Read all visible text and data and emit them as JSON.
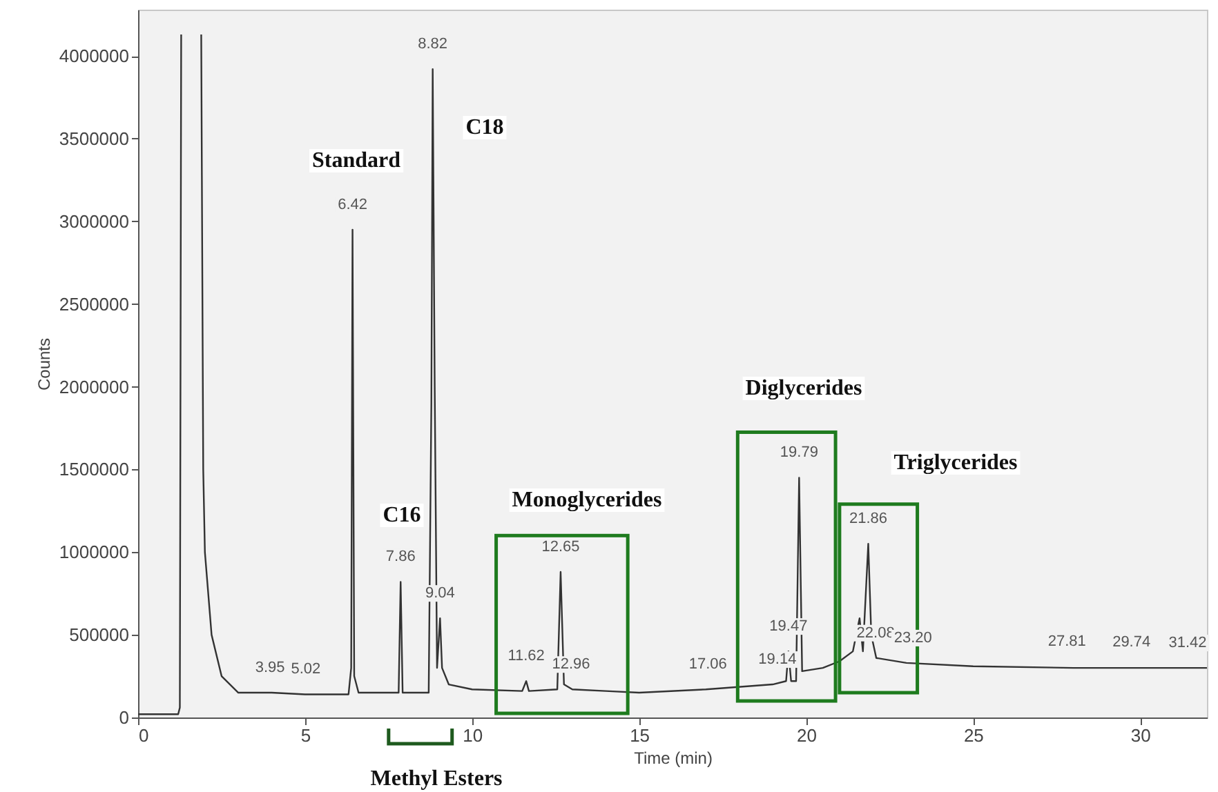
{
  "chart_data": {
    "type": "line",
    "xlabel": "Time (min)",
    "ylabel": "Counts",
    "xlim": [
      0,
      32
    ],
    "ylim": [
      0,
      4280000
    ],
    "xticks": [
      0,
      5,
      10,
      15,
      20,
      25,
      30
    ],
    "yticks": [
      0,
      500000,
      1000000,
      1500000,
      2000000,
      2500000,
      3000000,
      3500000,
      4000000
    ],
    "grid": false,
    "marker": "none",
    "line_style": "solid",
    "x": [
      0,
      1.2,
      1.25,
      1.29,
      1.3,
      1.85,
      1.89,
      1.95,
      2.0,
      2.2,
      2.5,
      3.0,
      4.0,
      5.0,
      6.3,
      6.38,
      6.42,
      6.47,
      6.6,
      7.8,
      7.86,
      7.92,
      8.7,
      8.78,
      8.82,
      8.88,
      8.95,
      9.04,
      9.1,
      9.3,
      10,
      11.5,
      11.62,
      11.7,
      12.55,
      12.65,
      12.75,
      13.0,
      14,
      15,
      17,
      19,
      19.4,
      19.47,
      19.55,
      19.7,
      19.79,
      19.88,
      20.5,
      21,
      21.4,
      21.6,
      21.7,
      21.86,
      21.95,
      22.1,
      23,
      25,
      28,
      32
    ],
    "series": [
      {
        "color": "#333333",
        "values": [
          20000,
          20000,
          60000,
          4130000,
          null,
          null,
          4130000,
          1500000,
          1000000,
          500000,
          250000,
          150000,
          150000,
          140000,
          140000,
          300000,
          2950000,
          250000,
          150000,
          150000,
          820000,
          150000,
          150000,
          1900000,
          3920000,
          2000000,
          300000,
          600000,
          300000,
          200000,
          170000,
          160000,
          220000,
          160000,
          170000,
          880000,
          200000,
          170000,
          160000,
          150000,
          170000,
          200000,
          220000,
          400000,
          220000,
          220000,
          1450000,
          280000,
          300000,
          340000,
          400000,
          600000,
          400000,
          1050000,
          500000,
          360000,
          330000,
          310000,
          300000,
          300000
        ]
      }
    ],
    "annotations": [
      {
        "text": "3.95",
        "x": 3.95,
        "y": 150000
      },
      {
        "text": "5.02",
        "x": 5.02,
        "y": 140000
      },
      {
        "text": "6.42",
        "x": 6.42,
        "y": 2950000
      },
      {
        "text": "7.86",
        "x": 7.86,
        "y": 820000
      },
      {
        "text": "8.82",
        "x": 8.82,
        "y": 3920000
      },
      {
        "text": "9.04",
        "x": 9.04,
        "y": 600000
      },
      {
        "text": "11.62",
        "x": 11.62,
        "y": 220000
      },
      {
        "text": "12.65",
        "x": 12.65,
        "y": 880000
      },
      {
        "text": "12.96",
        "x": 12.96,
        "y": 170000
      },
      {
        "text": "17.06",
        "x": 17.06,
        "y": 170000
      },
      {
        "text": "19.14",
        "x": 19.14,
        "y": 200000
      },
      {
        "text": "19.47",
        "x": 19.47,
        "y": 400000
      },
      {
        "text": "19.79",
        "x": 19.79,
        "y": 1450000
      },
      {
        "text": "21.86",
        "x": 21.86,
        "y": 1050000
      },
      {
        "text": "22.08",
        "x": 22.08,
        "y": 360000
      },
      {
        "text": "23.20",
        "x": 23.2,
        "y": 330000
      },
      {
        "text": "27.81",
        "x": 27.81,
        "y": 310000
      },
      {
        "text": "29.74",
        "x": 29.74,
        "y": 305000
      },
      {
        "text": "31.42",
        "x": 31.42,
        "y": 300000
      },
      "Standard",
      "C18",
      "C16",
      "Monoglycerides",
      "Diglycerides",
      "Triglycerides",
      "Methyl Esters"
    ]
  }
}
